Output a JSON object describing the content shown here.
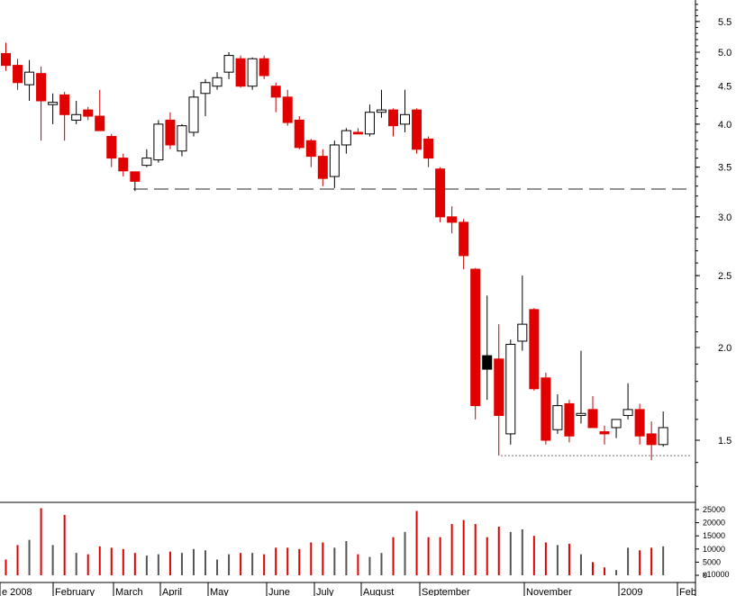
{
  "chart_data": {
    "type": "candlestick",
    "title": "",
    "y_scale": "log",
    "price_axis_ticks": [
      "1.5",
      "2.0",
      "2.5",
      "3.0",
      "3.5",
      "4.0",
      "4.5",
      "5.0",
      "5.5"
    ],
    "volume_axis_ticks": [
      "0",
      "5000",
      "10000",
      "15000",
      "20000",
      "25000"
    ],
    "volume_unit_label": "x10000",
    "time_labels": [
      "e 2008",
      "February",
      "March",
      "April",
      "May",
      "June",
      "July",
      "August",
      "September",
      "November",
      "2009",
      "Feb"
    ],
    "reference_lines": [
      {
        "style": "dashed",
        "value": 3.27
      },
      {
        "style": "dotted",
        "value": 1.43
      }
    ],
    "up_color": "#ffffff",
    "down_color": "#e00000",
    "candles": [
      {
        "o": 4.98,
        "h": 5.15,
        "l": 4.72,
        "c": 4.8,
        "v": 6000
      },
      {
        "o": 4.8,
        "h": 4.9,
        "l": 4.45,
        "c": 4.55,
        "v": 11500
      },
      {
        "o": 4.52,
        "h": 4.88,
        "l": 4.3,
        "c": 4.7,
        "v": 13500
      },
      {
        "o": 4.68,
        "h": 4.78,
        "l": 3.8,
        "c": 4.3,
        "v": 25500
      },
      {
        "o": 4.25,
        "h": 4.4,
        "l": 4.0,
        "c": 4.28,
        "v": 11500
      },
      {
        "o": 4.38,
        "h": 4.42,
        "l": 3.8,
        "c": 4.12,
        "v": 23000
      },
      {
        "o": 4.05,
        "h": 4.3,
        "l": 4.0,
        "c": 4.12,
        "v": 8500
      },
      {
        "o": 4.18,
        "h": 4.22,
        "l": 4.05,
        "c": 4.1,
        "v": 8000
      },
      {
        "o": 4.1,
        "h": 4.45,
        "l": 3.95,
        "c": 3.92,
        "v": 11000
      },
      {
        "o": 3.85,
        "h": 3.88,
        "l": 3.5,
        "c": 3.6,
        "v": 10500
      },
      {
        "o": 3.6,
        "h": 3.65,
        "l": 3.4,
        "c": 3.46,
        "v": 10000
      },
      {
        "o": 3.35,
        "h": 3.44,
        "l": 3.25,
        "c": 3.45,
        "v": 8500,
        "color": "#e00000"
      },
      {
        "o": 3.52,
        "h": 3.7,
        "l": 3.5,
        "c": 3.6,
        "v": 7500
      },
      {
        "o": 3.58,
        "h": 4.05,
        "l": 3.55,
        "c": 4.0,
        "v": 8000
      },
      {
        "o": 4.05,
        "h": 4.15,
        "l": 3.7,
        "c": 3.75,
        "v": 9000
      },
      {
        "o": 3.68,
        "h": 4.0,
        "l": 3.62,
        "c": 3.98,
        "v": 8500
      },
      {
        "o": 3.9,
        "h": 4.45,
        "l": 3.85,
        "c": 4.35,
        "v": 10000
      },
      {
        "o": 4.4,
        "h": 4.6,
        "l": 4.1,
        "c": 4.55,
        "v": 9500
      },
      {
        "o": 4.5,
        "h": 4.7,
        "l": 4.45,
        "c": 4.62,
        "v": 6000
      },
      {
        "o": 4.7,
        "h": 5.0,
        "l": 4.6,
        "c": 4.95,
        "v": 8000
      },
      {
        "o": 4.9,
        "h": 4.95,
        "l": 4.48,
        "c": 4.5,
        "v": 8500
      },
      {
        "o": 4.5,
        "h": 4.92,
        "l": 4.45,
        "c": 4.9,
        "v": 8500
      },
      {
        "o": 4.9,
        "h": 4.95,
        "l": 4.6,
        "c": 4.65,
        "v": 8000
      },
      {
        "o": 4.5,
        "h": 4.55,
        "l": 4.15,
        "c": 4.35,
        "v": 10500
      },
      {
        "o": 4.35,
        "h": 4.45,
        "l": 3.98,
        "c": 4.02,
        "v": 10500
      },
      {
        "o": 4.05,
        "h": 4.1,
        "l": 3.7,
        "c": 3.72,
        "v": 10000
      },
      {
        "o": 3.8,
        "h": 3.82,
        "l": 3.5,
        "c": 3.62,
        "v": 12500
      },
      {
        "o": 3.62,
        "h": 3.7,
        "l": 3.3,
        "c": 3.38,
        "v": 12500
      },
      {
        "o": 3.4,
        "h": 3.8,
        "l": 3.28,
        "c": 3.75,
        "v": 10500
      },
      {
        "o": 3.75,
        "h": 3.95,
        "l": 3.65,
        "c": 3.92,
        "v": 13000
      },
      {
        "o": 3.9,
        "h": 3.95,
        "l": 3.88,
        "c": 3.88,
        "v": 8000
      },
      {
        "o": 3.88,
        "h": 4.25,
        "l": 3.85,
        "c": 4.15,
        "v": 7000
      },
      {
        "o": 4.15,
        "h": 4.45,
        "l": 4.08,
        "c": 4.18,
        "v": 8500
      },
      {
        "o": 4.18,
        "h": 4.2,
        "l": 3.85,
        "c": 3.98,
        "v": 14500
      },
      {
        "o": 4.0,
        "h": 4.45,
        "l": 3.9,
        "c": 4.12,
        "v": 16500
      },
      {
        "o": 4.18,
        "h": 4.2,
        "l": 3.65,
        "c": 3.7,
        "v": 24500
      },
      {
        "o": 3.82,
        "h": 3.85,
        "l": 3.5,
        "c": 3.6,
        "v": 14500
      },
      {
        "o": 3.48,
        "h": 3.5,
        "l": 2.95,
        "c": 3.0,
        "v": 14500
      },
      {
        "o": 3.0,
        "h": 3.1,
        "l": 2.85,
        "c": 2.95,
        "v": 19500
      },
      {
        "o": 2.95,
        "h": 2.98,
        "l": 2.55,
        "c": 2.66,
        "v": 21000
      },
      {
        "o": 2.55,
        "h": 2.56,
        "l": 1.6,
        "c": 1.67,
        "v": 19500
      },
      {
        "o": 1.95,
        "h": 2.35,
        "l": 1.7,
        "c": 1.87,
        "v": 14500,
        "color": "#000000"
      },
      {
        "o": 1.93,
        "h": 2.15,
        "l": 1.43,
        "c": 1.62,
        "v": 18500
      },
      {
        "o": 1.53,
        "h": 2.05,
        "l": 1.48,
        "c": 2.02,
        "v": 16500
      },
      {
        "o": 2.04,
        "h": 2.5,
        "l": 1.98,
        "c": 2.15,
        "v": 17500
      },
      {
        "o": 2.25,
        "h": 2.26,
        "l": 1.75,
        "c": 1.76,
        "v": 15000
      },
      {
        "o": 1.82,
        "h": 1.85,
        "l": 1.48,
        "c": 1.5,
        "v": 12500
      },
      {
        "o": 1.55,
        "h": 1.73,
        "l": 1.53,
        "c": 1.67,
        "v": 11500
      },
      {
        "o": 1.68,
        "h": 1.7,
        "l": 1.49,
        "c": 1.52,
        "v": 12000
      },
      {
        "o": 1.62,
        "h": 1.98,
        "l": 1.58,
        "c": 1.63,
        "v": 8000
      },
      {
        "o": 1.65,
        "h": 1.72,
        "l": 1.56,
        "c": 1.56,
        "v": 5000
      },
      {
        "o": 1.54,
        "h": 1.57,
        "l": 1.48,
        "c": 1.53,
        "v": 3000
      },
      {
        "o": 1.56,
        "h": 1.6,
        "l": 1.51,
        "c": 1.6,
        "v": 2000
      },
      {
        "o": 1.62,
        "h": 1.79,
        "l": 1.6,
        "c": 1.65,
        "v": 10500
      },
      {
        "o": 1.65,
        "h": 1.68,
        "l": 1.48,
        "c": 1.52,
        "v": 9500
      },
      {
        "o": 1.53,
        "h": 1.59,
        "l": 1.41,
        "c": 1.48,
        "v": 10500
      },
      {
        "o": 1.48,
        "h": 1.64,
        "l": 1.47,
        "c": 1.56,
        "v": 11000
      }
    ]
  }
}
